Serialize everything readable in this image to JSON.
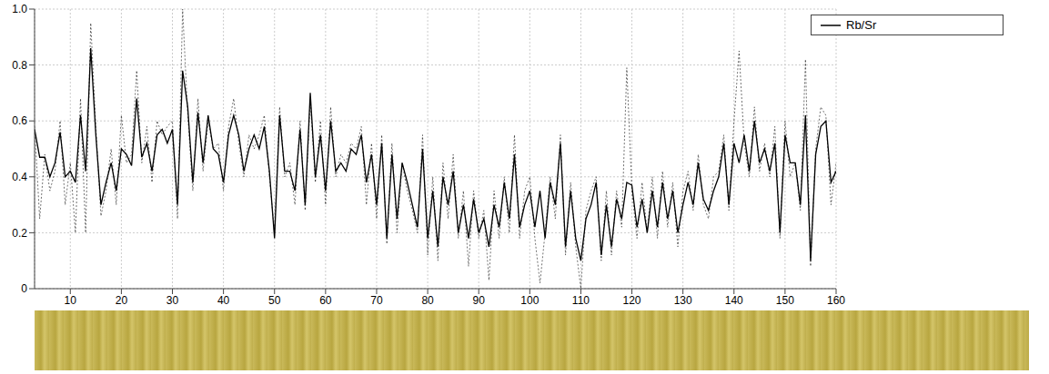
{
  "chart_data": {
    "type": "line",
    "x": [
      3,
      4,
      5,
      6,
      7,
      8,
      9,
      10,
      11,
      12,
      13,
      14,
      15,
      16,
      17,
      18,
      19,
      20,
      21,
      22,
      23,
      24,
      25,
      26,
      27,
      28,
      29,
      30,
      31,
      32,
      33,
      34,
      35,
      36,
      37,
      38,
      39,
      40,
      41,
      42,
      43,
      44,
      45,
      46,
      47,
      48,
      49,
      50,
      51,
      52,
      53,
      54,
      55,
      56,
      57,
      58,
      59,
      60,
      61,
      62,
      63,
      64,
      65,
      66,
      67,
      68,
      69,
      70,
      71,
      72,
      73,
      74,
      75,
      76,
      77,
      78,
      79,
      80,
      81,
      82,
      83,
      84,
      85,
      86,
      87,
      88,
      89,
      90,
      91,
      92,
      93,
      94,
      95,
      96,
      97,
      98,
      99,
      100,
      101,
      102,
      103,
      104,
      105,
      106,
      107,
      108,
      109,
      110,
      111,
      112,
      113,
      114,
      115,
      116,
      117,
      118,
      119,
      120,
      121,
      122,
      123,
      124,
      125,
      126,
      127,
      128,
      129,
      130,
      131,
      132,
      133,
      134,
      135,
      136,
      137,
      138,
      139,
      140,
      141,
      142,
      143,
      144,
      145,
      146,
      147,
      148,
      149,
      150,
      151,
      152,
      153,
      154,
      155,
      156,
      157,
      158,
      159,
      160
    ],
    "series": [
      {
        "name": "Rb/Sr",
        "color": "#000000",
        "line_style": "solid",
        "values": [
          0.57,
          0.47,
          0.47,
          0.4,
          0.45,
          0.56,
          0.4,
          0.42,
          0.38,
          0.62,
          0.42,
          0.86,
          0.55,
          0.3,
          0.38,
          0.45,
          0.35,
          0.5,
          0.48,
          0.44,
          0.68,
          0.47,
          0.52,
          0.42,
          0.55,
          0.57,
          0.52,
          0.57,
          0.3,
          0.78,
          0.65,
          0.38,
          0.63,
          0.45,
          0.62,
          0.5,
          0.48,
          0.38,
          0.55,
          0.62,
          0.55,
          0.42,
          0.5,
          0.55,
          0.5,
          0.58,
          0.42,
          0.18,
          0.62,
          0.42,
          0.42,
          0.35,
          0.57,
          0.3,
          0.7,
          0.4,
          0.55,
          0.35,
          0.6,
          0.42,
          0.45,
          0.42,
          0.5,
          0.48,
          0.55,
          0.38,
          0.48,
          0.3,
          0.52,
          0.18,
          0.48,
          0.25,
          0.45,
          0.38,
          0.3,
          0.22,
          0.5,
          0.18,
          0.35,
          0.15,
          0.4,
          0.3,
          0.42,
          0.2,
          0.3,
          0.18,
          0.32,
          0.2,
          0.25,
          0.15,
          0.3,
          0.22,
          0.38,
          0.25,
          0.48,
          0.22,
          0.3,
          0.35,
          0.22,
          0.35,
          0.18,
          0.38,
          0.3,
          0.52,
          0.15,
          0.35,
          0.18,
          0.1,
          0.25,
          0.3,
          0.38,
          0.12,
          0.3,
          0.15,
          0.32,
          0.25,
          0.38,
          0.37,
          0.22,
          0.32,
          0.2,
          0.35,
          0.22,
          0.38,
          0.25,
          0.35,
          0.2,
          0.3,
          0.38,
          0.3,
          0.45,
          0.32,
          0.28,
          0.35,
          0.4,
          0.52,
          0.3,
          0.52,
          0.45,
          0.55,
          0.42,
          0.6,
          0.45,
          0.5,
          0.42,
          0.52,
          0.2,
          0.55,
          0.45,
          0.45,
          0.3,
          0.62,
          0.1,
          0.48,
          0.58,
          0.6,
          0.38,
          0.42
        ]
      },
      {
        "color": "#000000",
        "line_style": "dotted",
        "values": [
          0.58,
          0.25,
          0.48,
          0.35,
          0.42,
          0.6,
          0.3,
          0.45,
          0.2,
          0.68,
          0.2,
          0.95,
          0.58,
          0.26,
          0.35,
          0.5,
          0.3,
          0.62,
          0.45,
          0.48,
          0.78,
          0.45,
          0.58,
          0.38,
          0.6,
          0.55,
          0.58,
          0.6,
          0.25,
          1.0,
          0.62,
          0.35,
          0.68,
          0.42,
          0.6,
          0.5,
          0.52,
          0.35,
          0.58,
          0.68,
          0.52,
          0.4,
          0.55,
          0.5,
          0.55,
          0.62,
          0.4,
          0.2,
          0.65,
          0.4,
          0.45,
          0.3,
          0.6,
          0.28,
          0.68,
          0.38,
          0.6,
          0.3,
          0.65,
          0.4,
          0.48,
          0.45,
          0.52,
          0.5,
          0.58,
          0.3,
          0.52,
          0.25,
          0.55,
          0.16,
          0.52,
          0.2,
          0.45,
          0.35,
          0.28,
          0.2,
          0.55,
          0.12,
          0.4,
          0.1,
          0.45,
          0.25,
          0.48,
          0.18,
          0.35,
          0.08,
          0.35,
          0.18,
          0.28,
          0.03,
          0.35,
          0.18,
          0.4,
          0.2,
          0.55,
          0.18,
          0.35,
          0.4,
          0.18,
          0.02,
          0.2,
          0.4,
          0.25,
          0.55,
          0.12,
          0.38,
          0.15,
          0.0,
          0.28,
          0.35,
          0.4,
          0.1,
          0.35,
          0.12,
          0.35,
          0.22,
          0.79,
          0.35,
          0.18,
          0.38,
          0.2,
          0.4,
          0.18,
          0.42,
          0.22,
          0.38,
          0.15,
          0.35,
          0.42,
          0.28,
          0.48,
          0.3,
          0.25,
          0.4,
          0.42,
          0.55,
          0.28,
          0.6,
          0.85,
          0.52,
          0.4,
          0.65,
          0.42,
          0.52,
          0.4,
          0.58,
          0.18,
          0.6,
          0.4,
          0.45,
          0.28,
          0.82,
          0.08,
          0.5,
          0.65,
          0.62,
          0.3,
          0.45
        ]
      }
    ],
    "xlim": [
      3,
      160
    ],
    "xticks": [
      10,
      20,
      30,
      40,
      50,
      60,
      70,
      80,
      90,
      100,
      110,
      120,
      130,
      140,
      150,
      160
    ],
    "ylim": [
      0,
      1
    ],
    "yticks": [
      0,
      0.2,
      0.4,
      0.6,
      0.8,
      {
        "value": 1,
        "label": "1.0"
      }
    ],
    "grid": true,
    "legend": "upper right"
  }
}
